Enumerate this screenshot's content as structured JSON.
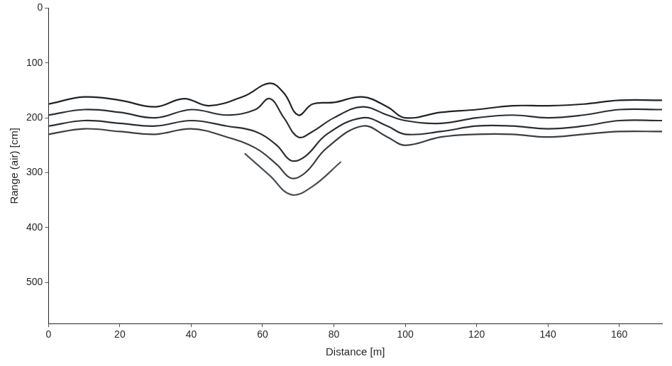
{
  "chart_data": {
    "type": "line",
    "x_label": "Distance [m]",
    "y_label": "Range (air) [cm]",
    "xlim": [
      0,
      172
    ],
    "xticks": [
      0,
      20,
      40,
      60,
      80,
      100,
      120,
      140,
      160
    ],
    "ylim": [
      575,
      0
    ],
    "yticks": [
      0,
      100,
      200,
      300,
      400,
      500
    ],
    "grid": false,
    "series": [
      {
        "color": "#1f2326",
        "line_style": "solid",
        "x": [
          0,
          10,
          20,
          30,
          38,
          45,
          55,
          62,
          66,
          70,
          74,
          80,
          88,
          95,
          100,
          110,
          120,
          130,
          140,
          150,
          160,
          172
        ],
        "values": [
          175,
          162,
          168,
          180,
          165,
          178,
          160,
          137,
          155,
          195,
          175,
          172,
          162,
          180,
          200,
          190,
          185,
          178,
          178,
          175,
          168,
          168
        ]
      },
      {
        "color": "#2b2f33",
        "line_style": "solid",
        "x": [
          0,
          10,
          20,
          30,
          40,
          50,
          58,
          62,
          66,
          70,
          74,
          80,
          88,
          95,
          100,
          110,
          120,
          130,
          140,
          150,
          160,
          172
        ],
        "values": [
          195,
          185,
          190,
          200,
          185,
          195,
          185,
          165,
          200,
          235,
          225,
          200,
          180,
          195,
          205,
          210,
          200,
          195,
          200,
          195,
          185,
          185
        ]
      },
      {
        "color": "#2b2f33",
        "line_style": "solid",
        "x": [
          0,
          10,
          20,
          30,
          40,
          50,
          58,
          64,
          68,
          72,
          78,
          88,
          95,
          100,
          110,
          120,
          130,
          140,
          150,
          160,
          172
        ],
        "values": [
          215,
          205,
          210,
          215,
          205,
          215,
          225,
          250,
          278,
          270,
          230,
          200,
          215,
          230,
          225,
          215,
          215,
          220,
          215,
          205,
          205
        ]
      },
      {
        "color": "#3a3f44",
        "line_style": "solid",
        "x": [
          0,
          10,
          20,
          30,
          40,
          50,
          58,
          64,
          68,
          72,
          78,
          88,
          95,
          100,
          110,
          120,
          130,
          140,
          150,
          160,
          172
        ],
        "values": [
          230,
          220,
          225,
          230,
          220,
          235,
          255,
          285,
          310,
          300,
          255,
          215,
          235,
          250,
          235,
          230,
          230,
          235,
          230,
          225,
          225
        ]
      },
      {
        "color": "#4a5055",
        "line_style": "solid",
        "x": [
          55,
          62,
          68,
          74,
          82
        ],
        "values": [
          265,
          305,
          340,
          325,
          280
        ]
      }
    ]
  }
}
